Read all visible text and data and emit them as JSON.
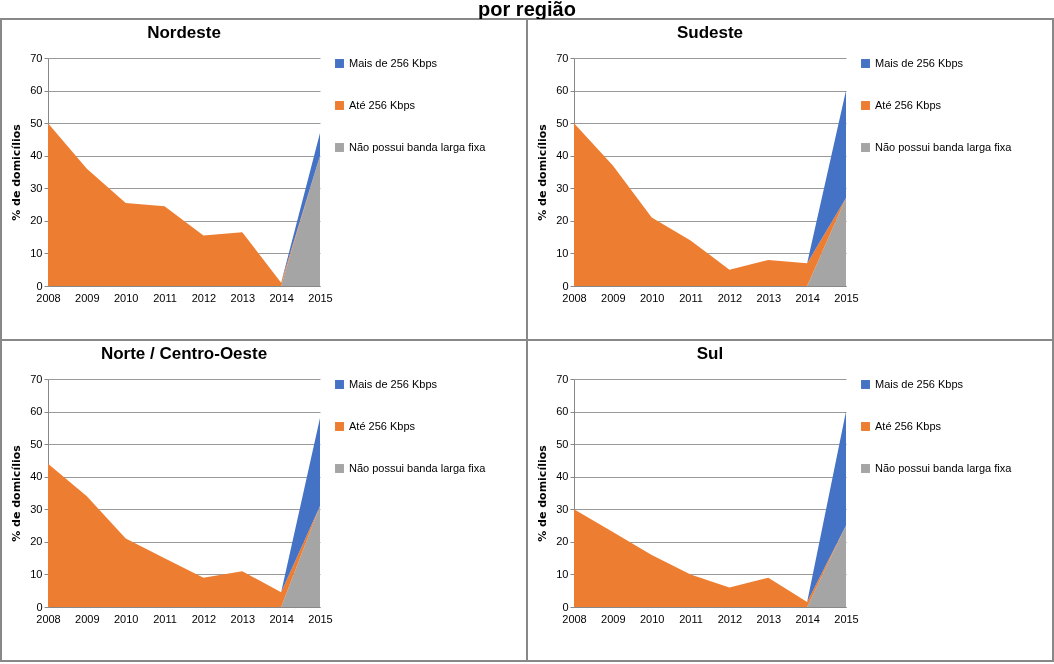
{
  "chart_data": [
    {
      "type": "area",
      "stacked": true,
      "title": "Nordeste",
      "ylabel": "% de domicílios",
      "annotations": [
        "por região"
      ],
      "categories": [
        "2008",
        "2009",
        "2010",
        "2011",
        "2012",
        "2013",
        "2014",
        "2015"
      ],
      "series": [
        {
          "name": "Não possui banda larga fixa",
          "color": "#a5a5a5",
          "values": [
            0,
            0,
            0,
            0,
            0,
            0,
            0,
            40
          ]
        },
        {
          "name": "Até 256 Kbps",
          "color": "#ed7d31",
          "values": [
            50,
            36,
            25.5,
            24.5,
            15.5,
            16.5,
            1,
            0
          ]
        },
        {
          "name": "Mais de 256 Kbps",
          "color": "#4472c4",
          "values": [
            0,
            0,
            0,
            0,
            0,
            0,
            0,
            7
          ]
        }
      ],
      "ylim": [
        0,
        70
      ],
      "yticks": [
        0,
        10,
        20,
        30,
        40,
        50,
        60,
        70
      ],
      "grid": "y",
      "legend": "right"
    },
    {
      "type": "area",
      "stacked": true,
      "title": "Sudeste",
      "ylabel": "% de domicílios",
      "categories": [
        "2008",
        "2009",
        "2010",
        "2011",
        "2012",
        "2013",
        "2014",
        "2015"
      ],
      "series": [
        {
          "name": "Não possui banda larga fixa",
          "color": "#a5a5a5",
          "values": [
            0,
            0,
            0,
            0,
            0,
            0,
            0,
            27
          ]
        },
        {
          "name": "Até 256 Kbps",
          "color": "#ed7d31",
          "values": [
            50,
            37,
            21,
            14,
            5,
            8,
            7,
            0
          ]
        },
        {
          "name": "Mais de 256 Kbps",
          "color": "#4472c4",
          "values": [
            0,
            0,
            0,
            0,
            0,
            0,
            0,
            33
          ]
        }
      ],
      "ylim": [
        0,
        70
      ],
      "yticks": [
        0,
        10,
        20,
        30,
        40,
        50,
        60,
        70
      ],
      "grid": "y",
      "legend": "right"
    },
    {
      "type": "area",
      "stacked": true,
      "title": "Norte / Centro-Oeste",
      "ylabel": "% de domicílios",
      "categories": [
        "2008",
        "2009",
        "2010",
        "2011",
        "2012",
        "2013",
        "2014",
        "2015"
      ],
      "series": [
        {
          "name": "Não possui banda larga fixa",
          "color": "#a5a5a5",
          "values": [
            0,
            0,
            0,
            0,
            0,
            0,
            0,
            31
          ]
        },
        {
          "name": "Até 256 Kbps",
          "color": "#ed7d31",
          "values": [
            44,
            34,
            21,
            15,
            9,
            11,
            4.5,
            0
          ]
        },
        {
          "name": "Mais de 256 Kbps",
          "color": "#4472c4",
          "values": [
            0,
            0,
            0,
            0,
            0,
            0,
            0,
            27
          ]
        }
      ],
      "ylim": [
        0,
        70
      ],
      "yticks": [
        0,
        10,
        20,
        30,
        40,
        50,
        60,
        70
      ],
      "grid": "y",
      "legend": "right"
    },
    {
      "type": "area",
      "stacked": true,
      "title": "Sul",
      "ylabel": "% de domicílios",
      "categories": [
        "2008",
        "2009",
        "2010",
        "2011",
        "2012",
        "2013",
        "2014",
        "2015"
      ],
      "series": [
        {
          "name": "Não possui banda larga fixa",
          "color": "#a5a5a5",
          "values": [
            0,
            0,
            0,
            0,
            0,
            0,
            0,
            25
          ]
        },
        {
          "name": "Até 256 Kbps",
          "color": "#ed7d31",
          "values": [
            30,
            23,
            16,
            10,
            6,
            9,
            1.5,
            0
          ]
        },
        {
          "name": "Mais de 256 Kbps",
          "color": "#4472c4",
          "values": [
            0,
            0,
            0,
            0,
            0,
            0,
            0,
            35
          ]
        }
      ],
      "ylim": [
        0,
        70
      ],
      "yticks": [
        0,
        10,
        20,
        30,
        40,
        50,
        60,
        70
      ],
      "grid": "y",
      "legend": "right"
    }
  ]
}
